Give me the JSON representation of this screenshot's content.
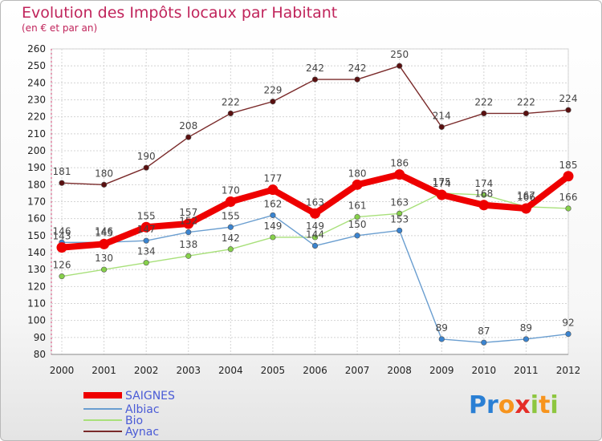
{
  "header": {
    "title": "Evolution des Impôts locaux par Habitant",
    "subtitle": "(en € et par an)"
  },
  "logo": {
    "letters": [
      "P",
      "r",
      "o",
      "x",
      "i",
      "t",
      "i"
    ],
    "colors": [
      "#2a7fd4",
      "#2a7fd4",
      "#f7941d",
      "#e52d27",
      "#8dc63f",
      "#f7941d",
      "#8dc63f"
    ]
  },
  "chart_data": {
    "type": "line",
    "title": "Evolution des Impôts locaux par Habitant",
    "subtitle": "(en € et par an)",
    "xlabel": "",
    "ylabel": "",
    "categories": [
      "2000",
      "2001",
      "2002",
      "2003",
      "2004",
      "2005",
      "2006",
      "2007",
      "2008",
      "2009",
      "2010",
      "2011",
      "2012"
    ],
    "ylim": [
      80,
      260
    ],
    "yticks": [
      80,
      90,
      100,
      110,
      120,
      130,
      140,
      150,
      160,
      170,
      180,
      190,
      200,
      210,
      220,
      230,
      240,
      250,
      260
    ],
    "grid": true,
    "legend_position": "bottom-left",
    "series": [
      {
        "name": "SAIGNES",
        "color": "#ee0000",
        "marker": "#ee0000",
        "width": 8,
        "values": [
          143,
          145,
          155,
          157,
          170,
          177,
          163,
          180,
          186,
          174,
          168,
          166,
          185
        ],
        "labels": [
          "143",
          "145",
          "155",
          "157",
          "170",
          "177",
          "163",
          "180",
          "186",
          "174",
          "168",
          "166",
          "185"
        ]
      },
      {
        "name": "Albiac",
        "color": "#6a9ed0",
        "marker": "#3a84d0",
        "width": 1.4,
        "values": [
          146,
          146,
          147,
          152,
          155,
          162,
          144,
          150,
          153,
          89,
          87,
          89,
          92
        ],
        "labels": [
          "146",
          "146",
          "147",
          "152",
          "155",
          "162",
          "144",
          "150",
          "153",
          "89",
          "87",
          "89",
          "92"
        ]
      },
      {
        "name": "Bio",
        "color": "#a8e07a",
        "marker": "#86d04a",
        "width": 1.4,
        "values": [
          126,
          130,
          134,
          138,
          142,
          149,
          149,
          161,
          163,
          175,
          174,
          167,
          166
        ],
        "labels": [
          "126",
          "130",
          "134",
          "138",
          "142",
          "149",
          "149",
          "161",
          "163",
          "175",
          "174",
          "167",
          "166"
        ]
      },
      {
        "name": "Aynac",
        "color": "#7a2a2a",
        "marker": "#5a1010",
        "width": 1.4,
        "values": [
          181,
          180,
          190,
          208,
          222,
          229,
          242,
          242,
          250,
          214,
          222,
          222,
          224
        ],
        "labels": [
          "181",
          "180",
          "190",
          "208",
          "222",
          "229",
          "242",
          "242",
          "250",
          "214",
          "222",
          "222",
          "224"
        ]
      }
    ],
    "legend_label_color": "#4a5bd6"
  }
}
